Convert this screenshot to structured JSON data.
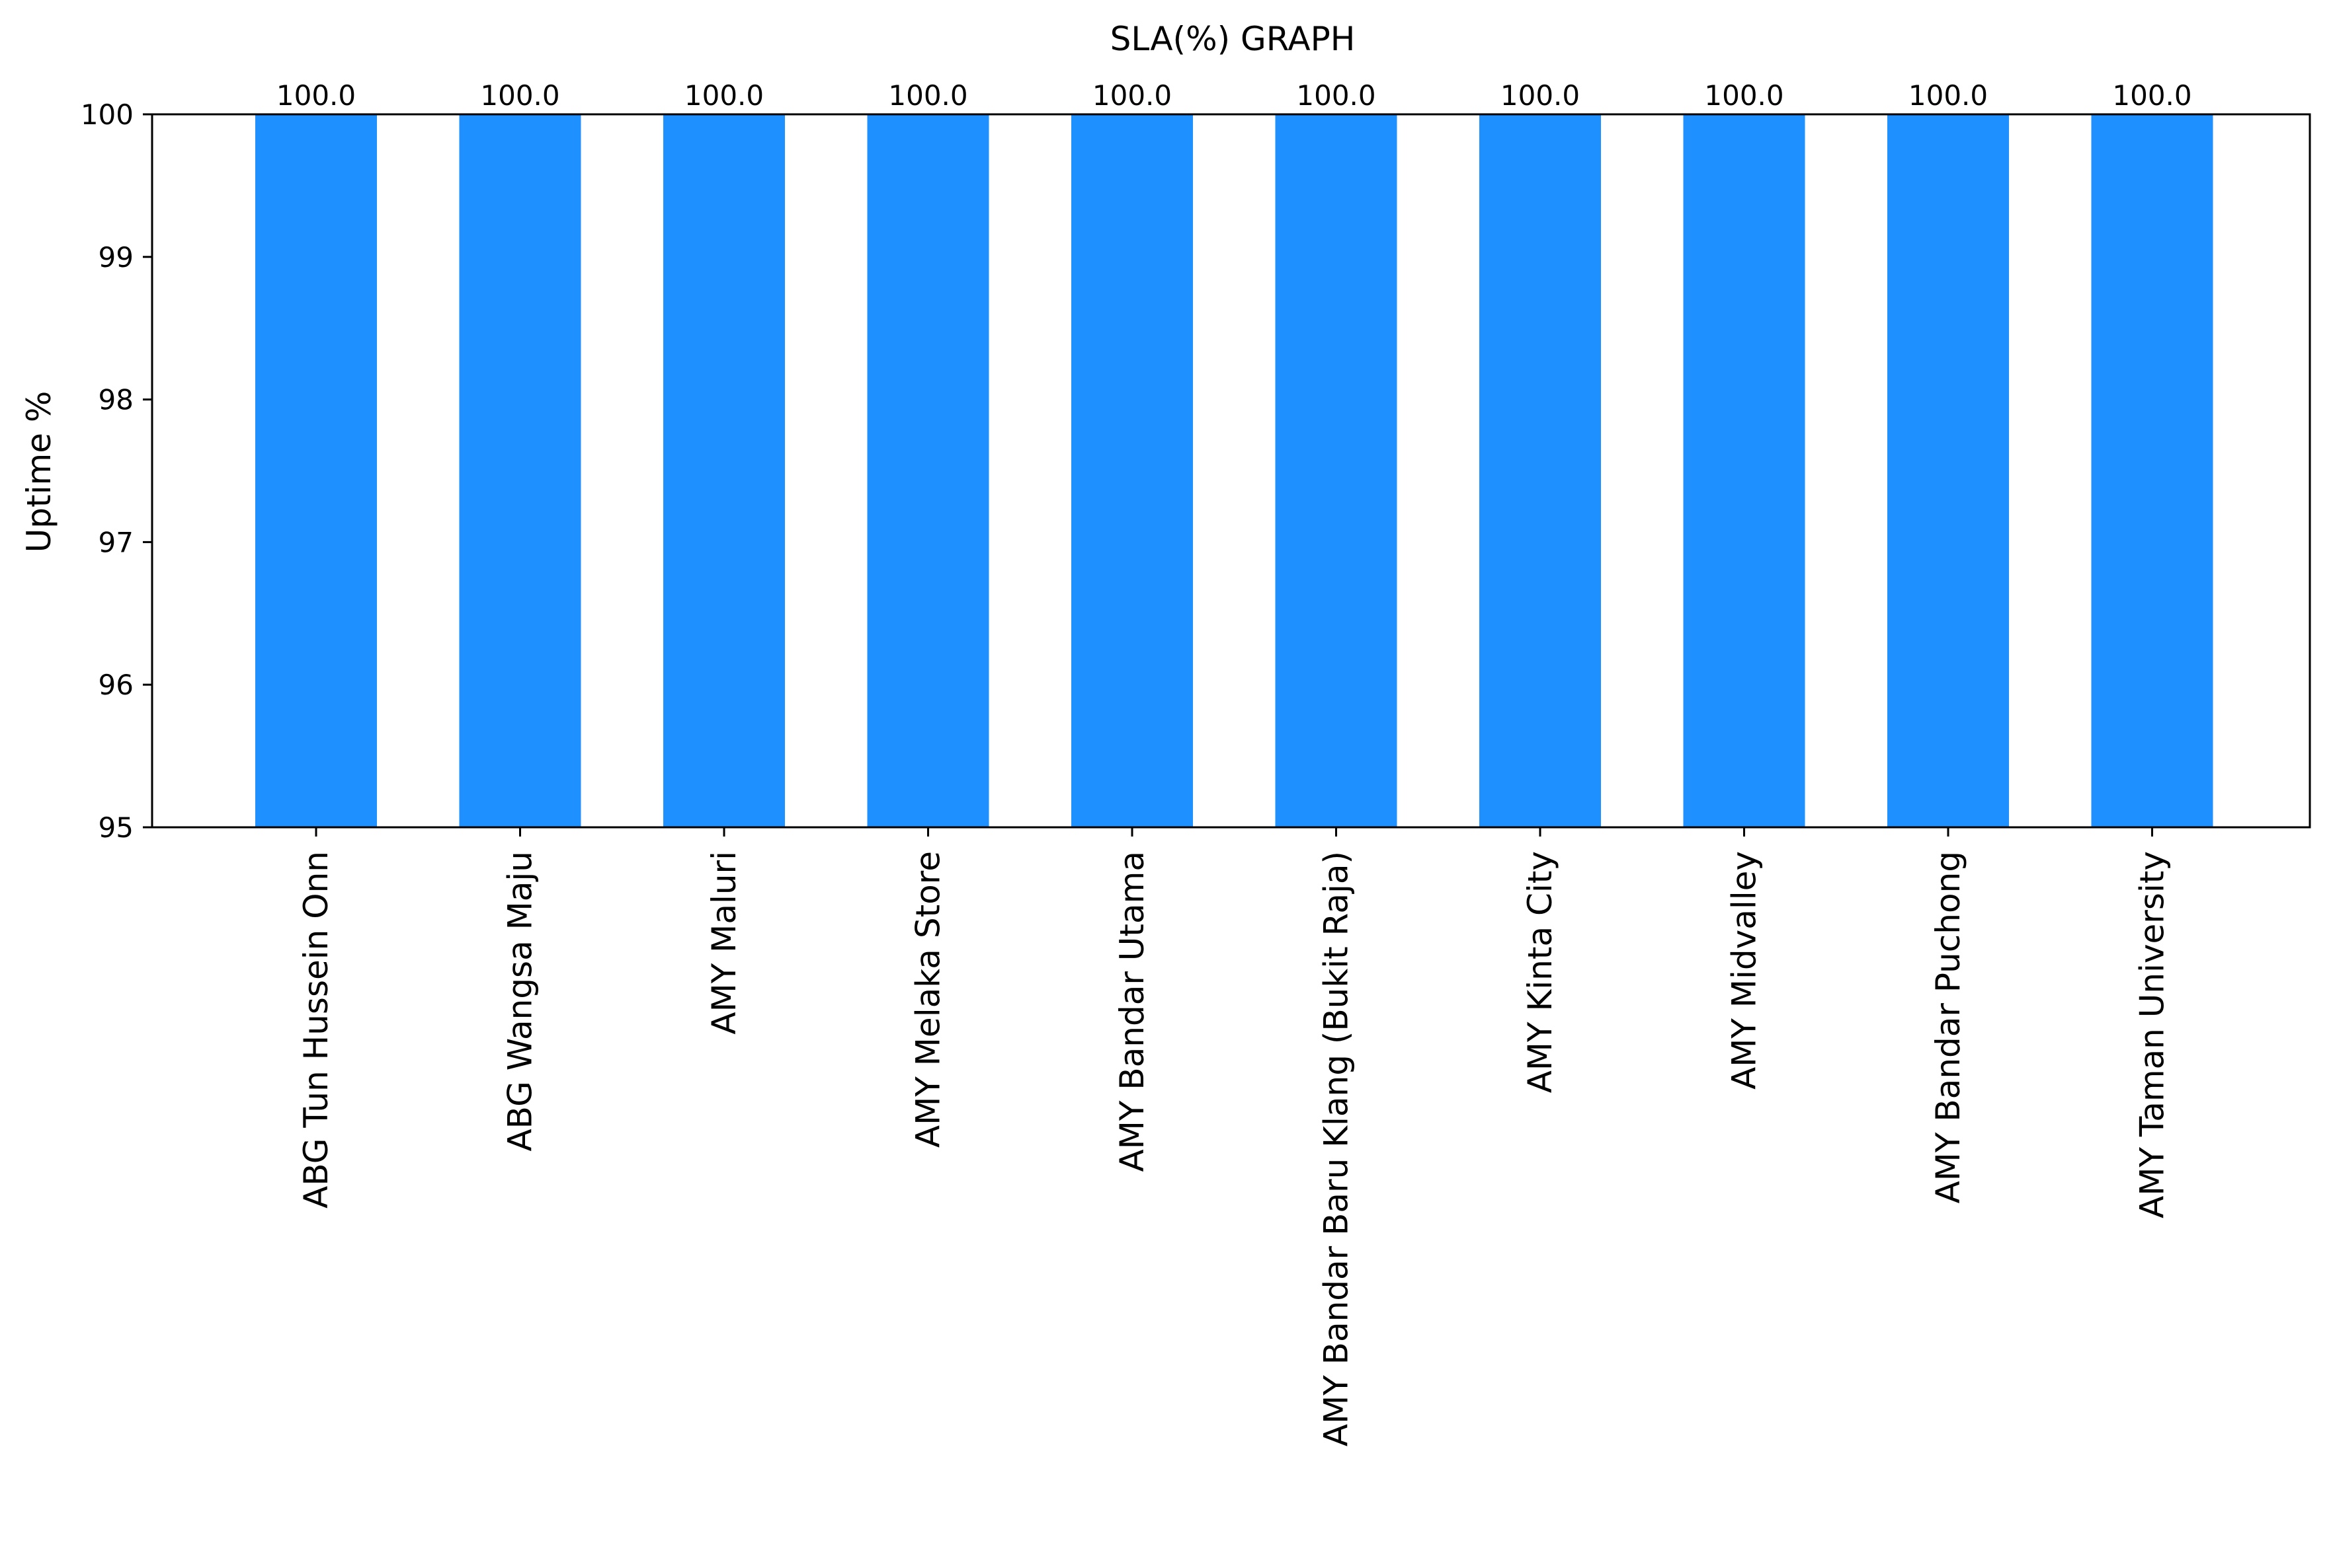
{
  "chart_data": {
    "type": "bar",
    "title": "SLA(%) GRAPH",
    "xlabel": "",
    "ylabel": "Uptime %",
    "ylim": [
      95,
      100
    ],
    "yticks": [
      95,
      96,
      97,
      98,
      99,
      100
    ],
    "categories": [
      "ABG Tun Hussein Onn",
      "ABG Wangsa Maju",
      "AMY Maluri",
      "AMY Melaka Store",
      "AMY Bandar Utama",
      "AMY Bandar Baru Klang (Bukit Raja)",
      "AMY Kinta City",
      "AMY Midvalley",
      "AMY Bandar Puchong",
      "AMY Taman University"
    ],
    "values": [
      100.0,
      100.0,
      100.0,
      100.0,
      100.0,
      100.0,
      100.0,
      100.0,
      100.0,
      100.0
    ],
    "data_labels": [
      "100.0",
      "100.0",
      "100.0",
      "100.0",
      "100.0",
      "100.0",
      "100.0",
      "100.0",
      "100.0",
      "100.0"
    ],
    "bar_color": "#1E90FF",
    "grid": false,
    "legend": false
  }
}
